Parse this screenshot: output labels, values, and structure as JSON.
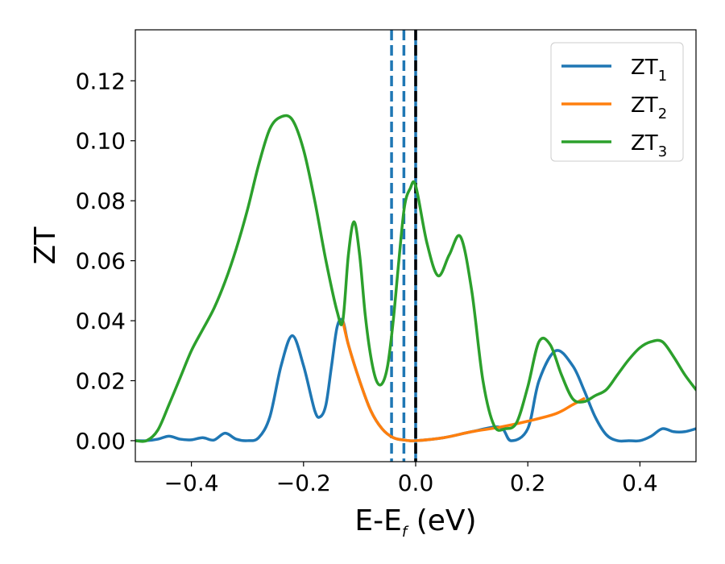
{
  "chart_data": {
    "type": "line",
    "xlabel_main": "E-E",
    "xlabel_sub": "f",
    "xlabel_unit": " (eV)",
    "ylabel": "ZT",
    "xlim": [
      -0.5,
      0.5
    ],
    "ylim": [
      -0.007,
      0.137
    ],
    "xticks": [
      -0.4,
      -0.2,
      0.0,
      0.2,
      0.4
    ],
    "xtick_labels": [
      "−0.4",
      "−0.2",
      "0.0",
      "0.2",
      "0.4"
    ],
    "yticks": [
      0.0,
      0.02,
      0.04,
      0.06,
      0.08,
      0.1,
      0.12
    ],
    "ytick_labels": [
      "0.00",
      "0.02",
      "0.04",
      "0.06",
      "0.08",
      "0.10",
      "0.12"
    ],
    "legend_position": "upper-right",
    "vertical_lines": [
      {
        "x": -0.043,
        "style": "dashed",
        "color": "#1f77b4"
      },
      {
        "x": -0.021,
        "style": "dashed",
        "color": "#1f77b4"
      },
      {
        "x": 0.0,
        "style": "solid",
        "color": "#1f77b4"
      },
      {
        "x": 0.0,
        "style": "dashed",
        "color": "#000000"
      }
    ],
    "series": [
      {
        "name": "ZT",
        "sub": "1",
        "color": "#1f77b4",
        "x": [
          -0.5,
          -0.48,
          -0.46,
          -0.44,
          -0.42,
          -0.4,
          -0.38,
          -0.36,
          -0.34,
          -0.32,
          -0.3,
          -0.28,
          -0.26,
          -0.24,
          -0.22,
          -0.2,
          -0.18,
          -0.17,
          -0.16,
          -0.15,
          -0.14,
          -0.13,
          -0.12,
          -0.1,
          -0.08,
          -0.06,
          -0.04,
          -0.02,
          0.0,
          0.05,
          0.1,
          0.15,
          0.17,
          0.2,
          0.22,
          0.25,
          0.28,
          0.3,
          0.32,
          0.34,
          0.36,
          0.38,
          0.4,
          0.42,
          0.44,
          0.46,
          0.48,
          0.5
        ],
        "y": [
          0.0,
          0.0,
          0.0005,
          0.0015,
          0.0005,
          0.0003,
          0.001,
          0.0002,
          0.0025,
          0.0005,
          0.0,
          0.001,
          0.008,
          0.025,
          0.035,
          0.025,
          0.01,
          0.008,
          0.012,
          0.025,
          0.038,
          0.04,
          0.032,
          0.02,
          0.01,
          0.004,
          0.001,
          0.0002,
          0.0,
          0.001,
          0.003,
          0.0045,
          0.0,
          0.004,
          0.02,
          0.03,
          0.025,
          0.017,
          0.008,
          0.002,
          0.0,
          0.0,
          0.0,
          0.0015,
          0.004,
          0.003,
          0.003,
          0.004
        ]
      },
      {
        "name": "ZT",
        "sub": "2",
        "color": "#ff7f0e",
        "x": [
          -0.13,
          -0.12,
          -0.1,
          -0.08,
          -0.06,
          -0.04,
          -0.02,
          0.0,
          0.05,
          0.1,
          0.15,
          0.2,
          0.25,
          0.28,
          0.3
        ],
        "y": [
          0.04,
          0.032,
          0.02,
          0.01,
          0.004,
          0.001,
          0.0002,
          0.0,
          0.001,
          0.003,
          0.0045,
          0.0065,
          0.009,
          0.012,
          0.014
        ]
      },
      {
        "name": "ZT",
        "sub": "3",
        "color": "#2ca02c",
        "x": [
          -0.5,
          -0.48,
          -0.46,
          -0.44,
          -0.42,
          -0.4,
          -0.38,
          -0.36,
          -0.34,
          -0.32,
          -0.3,
          -0.28,
          -0.26,
          -0.24,
          -0.22,
          -0.2,
          -0.18,
          -0.16,
          -0.14,
          -0.13,
          -0.12,
          -0.11,
          -0.1,
          -0.09,
          -0.08,
          -0.07,
          -0.06,
          -0.05,
          -0.04,
          -0.03,
          -0.02,
          -0.01,
          0.0,
          0.02,
          0.04,
          0.06,
          0.08,
          0.1,
          0.12,
          0.14,
          0.16,
          0.18,
          0.2,
          0.22,
          0.24,
          0.26,
          0.28,
          0.3,
          0.32,
          0.34,
          0.36,
          0.38,
          0.4,
          0.42,
          0.44,
          0.46,
          0.48,
          0.5
        ],
        "y": [
          0.0,
          0.0,
          0.0035,
          0.012,
          0.021,
          0.03,
          0.037,
          0.044,
          0.053,
          0.064,
          0.077,
          0.092,
          0.104,
          0.108,
          0.107,
          0.097,
          0.08,
          0.06,
          0.043,
          0.04,
          0.062,
          0.073,
          0.062,
          0.042,
          0.028,
          0.02,
          0.019,
          0.025,
          0.04,
          0.06,
          0.078,
          0.084,
          0.085,
          0.066,
          0.055,
          0.062,
          0.068,
          0.05,
          0.02,
          0.005,
          0.004,
          0.006,
          0.018,
          0.033,
          0.032,
          0.022,
          0.014,
          0.013,
          0.015,
          0.017,
          0.022,
          0.027,
          0.031,
          0.033,
          0.033,
          0.028,
          0.022,
          0.017
        ]
      }
    ]
  }
}
